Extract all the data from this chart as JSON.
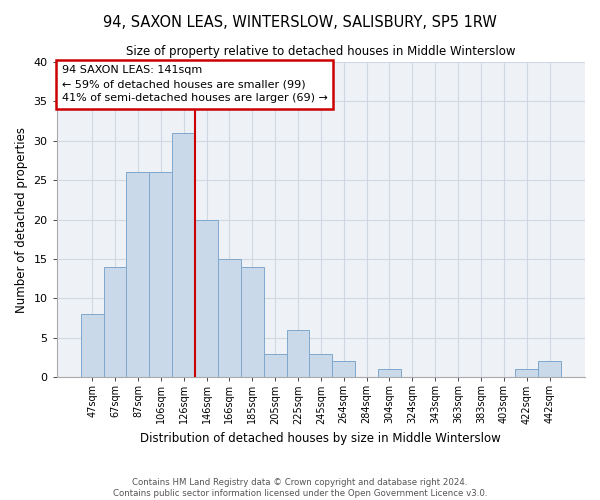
{
  "title": "94, SAXON LEAS, WINTERSLOW, SALISBURY, SP5 1RW",
  "subtitle": "Size of property relative to detached houses in Middle Winterslow",
  "xlabel": "Distribution of detached houses by size in Middle Winterslow",
  "ylabel": "Number of detached properties",
  "bar_labels": [
    "47sqm",
    "67sqm",
    "87sqm",
    "106sqm",
    "126sqm",
    "146sqm",
    "166sqm",
    "185sqm",
    "205sqm",
    "225sqm",
    "245sqm",
    "264sqm",
    "284sqm",
    "304sqm",
    "324sqm",
    "343sqm",
    "363sqm",
    "383sqm",
    "403sqm",
    "422sqm",
    "442sqm"
  ],
  "bar_values": [
    8,
    14,
    26,
    26,
    31,
    20,
    15,
    14,
    3,
    6,
    3,
    2,
    0,
    1,
    0,
    0,
    0,
    0,
    0,
    1,
    2
  ],
  "bar_color": "#c9d9ea",
  "bar_edgecolor": "#7fa8cc",
  "vline_color": "#cc0000",
  "ylim": [
    0,
    40
  ],
  "yticks": [
    0,
    5,
    10,
    15,
    20,
    25,
    30,
    35,
    40
  ],
  "annotation_text": "94 SAXON LEAS: 141sqm\n← 59% of detached houses are smaller (99)\n41% of semi-detached houses are larger (69) →",
  "annotation_bbox_color": "#ffffff",
  "annotation_bbox_edgecolor": "#cc0000",
  "footer1": "Contains HM Land Registry data © Crown copyright and database right 2024.",
  "footer2": "Contains public sector information licensed under the Open Government Licence v3.0.",
  "background_color": "#eef2f7",
  "grid_color": "#d0d8e4"
}
